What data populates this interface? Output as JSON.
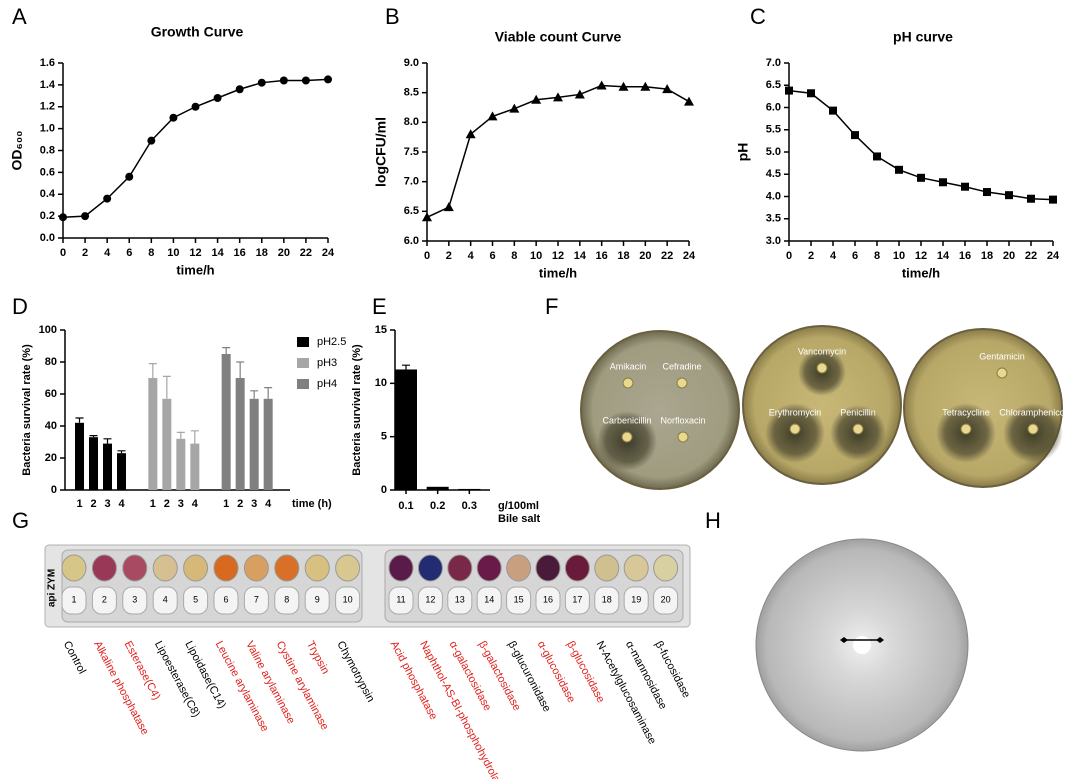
{
  "chart_data": [
    {
      "type": "line",
      "title": "Growth Curve",
      "xlabel": "time/h",
      "ylabel": "OD₆₀₀",
      "marker": "circle",
      "color": "#000000",
      "x": [
        0,
        2,
        4,
        6,
        8,
        10,
        12,
        14,
        16,
        18,
        20,
        22,
        24
      ],
      "values": [
        0.19,
        0.2,
        0.36,
        0.56,
        0.89,
        1.1,
        1.2,
        1.28,
        1.36,
        1.42,
        1.44,
        1.44,
        1.45
      ],
      "xlim": [
        0,
        24
      ],
      "xticks": [
        0,
        2,
        4,
        6,
        8,
        10,
        12,
        14,
        16,
        18,
        20,
        22,
        24
      ],
      "ylim": [
        0,
        1.6
      ],
      "yticks": [
        {
          "value": 0,
          "label": "0.0"
        },
        0.2,
        0.4,
        0.6,
        0.8,
        {
          "value": 1,
          "label": "1.0"
        },
        1.2,
        1.4,
        1.6
      ]
    },
    {
      "type": "line",
      "title": "Viable count Curve",
      "xlabel": "time/h",
      "ylabel": "logCFU/ml",
      "marker": "triangle",
      "color": "#000000",
      "x": [
        0,
        2,
        4,
        6,
        8,
        10,
        12,
        14,
        16,
        18,
        20,
        22,
        24
      ],
      "values": [
        6.4,
        6.57,
        7.8,
        8.1,
        8.23,
        8.38,
        8.42,
        8.47,
        8.62,
        8.6,
        8.6,
        8.56,
        8.35
      ],
      "xlim": [
        0,
        24
      ],
      "xticks": [
        0,
        2,
        4,
        6,
        8,
        10,
        12,
        14,
        16,
        18,
        20,
        22,
        24
      ],
      "ylim": [
        6,
        9
      ],
      "yticks": [
        {
          "value": 6,
          "label": "6.0"
        },
        6.5,
        {
          "value": 7,
          "label": "7.0"
        },
        7.5,
        {
          "value": 8,
          "label": "8.0"
        },
        8.5,
        {
          "value": 9,
          "label": "9.0"
        }
      ]
    },
    {
      "type": "line",
      "title": "pH curve",
      "xlabel": "time/h",
      "ylabel": "pH",
      "marker": "square",
      "color": "#000000",
      "x": [
        0,
        2,
        4,
        6,
        8,
        10,
        12,
        14,
        16,
        18,
        20,
        22,
        24
      ],
      "values": [
        6.38,
        6.32,
        5.93,
        5.38,
        4.9,
        4.6,
        4.42,
        4.32,
        4.22,
        4.1,
        4.03,
        3.95,
        3.93
      ],
      "xlim": [
        0,
        24
      ],
      "xticks": [
        0,
        2,
        4,
        6,
        8,
        10,
        12,
        14,
        16,
        18,
        20,
        22,
        24
      ],
      "ylim": [
        3,
        7
      ],
      "yticks": [
        {
          "value": 3,
          "label": "3.0"
        },
        3.5,
        {
          "value": 4,
          "label": "4.0"
        },
        4.5,
        {
          "value": 5,
          "label": "5.0"
        },
        5.5,
        {
          "value": 6,
          "label": "6.0"
        },
        6.5,
        {
          "value": 7,
          "label": "7.0"
        }
      ]
    },
    {
      "type": "bar",
      "xlabel": "time (h)",
      "ylabel": "Bacteria survival rate (%)",
      "categories": [
        "1",
        "2",
        "3",
        "4"
      ],
      "series": [
        {
          "name": "pH2.5",
          "color": "#000000",
          "values": [
            42,
            33,
            29,
            23
          ],
          "errors": [
            3,
            1,
            3,
            1.5
          ]
        },
        {
          "name": "pH3",
          "color": "#a6a6a6",
          "values": [
            70,
            57,
            32,
            29
          ],
          "errors": [
            9,
            14,
            4,
            8
          ]
        },
        {
          "name": "pH4",
          "color": "#808080",
          "values": [
            85,
            70,
            57,
            57
          ],
          "errors": [
            4,
            10,
            5,
            7
          ]
        }
      ],
      "ylim": [
        0,
        100
      ],
      "yticks": [
        0,
        20,
        40,
        60,
        80,
        100
      ]
    },
    {
      "type": "bar",
      "xlabel": [
        "g/100ml",
        "Bile salt"
      ],
      "ylabel": "Bacteria survival rate (%)",
      "color": "#000000",
      "categories": [
        "0.1",
        "0.2",
        "0.3"
      ],
      "values": [
        11.3,
        0.3,
        0.1
      ],
      "errors": [
        0.4,
        0,
        0
      ],
      "ylim": [
        0,
        15
      ],
      "yticks": [
        0,
        5,
        10,
        15
      ]
    }
  ],
  "panel_letters": [
    "A",
    "B",
    "C",
    "D",
    "E",
    "F",
    "G",
    "H"
  ],
  "plates": [
    [
      "Amikacin",
      "Cefradine",
      "Carbenicillin",
      "Norfloxacin"
    ],
    [
      "Vancomycin",
      "Erythromycin",
      "Penicillin"
    ],
    [
      "Gentamicin",
      "Tetracycline",
      "Chloramphenicol"
    ]
  ],
  "api_zym": {
    "brand": "api ZYM",
    "wells": [
      "1",
      "2",
      "3",
      "4",
      "5",
      "6",
      "7",
      "8",
      "9",
      "10",
      "11",
      "12",
      "13",
      "14",
      "15",
      "16",
      "17",
      "18",
      "19",
      "20"
    ],
    "well_colors": [
      "#d6c688",
      "#9a3858",
      "#a84a62",
      "#d6c092",
      "#d6b878",
      "#d86a20",
      "#d8a060",
      "#d87028",
      "#d8c080",
      "#d8c890",
      "#5a1a4a",
      "#232c72",
      "#7a2848",
      "#6a1a48",
      "#c8a080",
      "#4a1a3a",
      "#6a1a3a",
      "#d0c090",
      "#d8c898",
      "#d8d0a0"
    ],
    "enzymes": [
      {
        "name": "Control",
        "color": "#000000"
      },
      {
        "name": "Alkaline phosphatase",
        "color": "#e0201c"
      },
      {
        "name": "Esterase(C4)",
        "color": "#e0201c"
      },
      {
        "name": "Lipoesterase(C8)",
        "color": "#000000"
      },
      {
        "name": "Lipoidase(C14)",
        "color": "#000000"
      },
      {
        "name": "Leucine arylaminase",
        "color": "#e0201c"
      },
      {
        "name": "Valine arylaminase",
        "color": "#e0201c"
      },
      {
        "name": "Cystine arylaminase",
        "color": "#e0201c"
      },
      {
        "name": "Trypsin",
        "color": "#e0201c"
      },
      {
        "name": "Chymotrypsin",
        "color": "#000000"
      },
      {
        "name": "Acid phosphatase",
        "color": "#e0201c"
      },
      {
        "name": "Naphthol-AS-BI-phosphohydrola",
        "color": "#e0201c"
      },
      {
        "name": "α-galactosidase",
        "color": "#e0201c"
      },
      {
        "name": "β-galactosidase",
        "color": "#e0201c"
      },
      {
        "name": "β-glucuronidase",
        "color": "#000000"
      },
      {
        "name": "α-glucosidase",
        "color": "#e0201c"
      },
      {
        "name": "β-glucosidase",
        "color": "#e0201c"
      },
      {
        "name": "N-Acetylglucosaminase",
        "color": "#000000"
      },
      {
        "name": "α-mannosidase",
        "color": "#000000"
      },
      {
        "name": "β-fucosidase",
        "color": "#000000"
      }
    ]
  }
}
